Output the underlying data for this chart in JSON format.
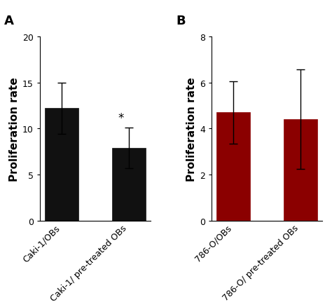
{
  "panel_A": {
    "categories": [
      "Caki-1/OBs",
      "Caki-1/ pre-treated OBs"
    ],
    "values": [
      12.2,
      7.9
    ],
    "errors": [
      2.8,
      2.2
    ],
    "bar_color": "#111111",
    "ylabel": "Proliferation rate",
    "ylim": [
      0,
      20
    ],
    "yticks": [
      0,
      5,
      10,
      15,
      20
    ],
    "significance": "*",
    "sig_bar_index": 1
  },
  "panel_B": {
    "categories": [
      "786-O/OBs",
      "786-O/ pre-treated OBs"
    ],
    "values": [
      4.7,
      4.4
    ],
    "errors": [
      1.35,
      2.15
    ],
    "bar_color": "#8B0000",
    "ylabel": "Proliferation rate",
    "ylim": [
      0,
      8
    ],
    "yticks": [
      0,
      2,
      4,
      6,
      8
    ]
  },
  "panel_A_label": "A",
  "panel_B_label": "B",
  "label_fontsize": 13,
  "ylabel_fontsize": 11,
  "tick_fontsize": 9,
  "bar_width": 0.5,
  "error_capsize": 4,
  "background_color": "#ffffff"
}
